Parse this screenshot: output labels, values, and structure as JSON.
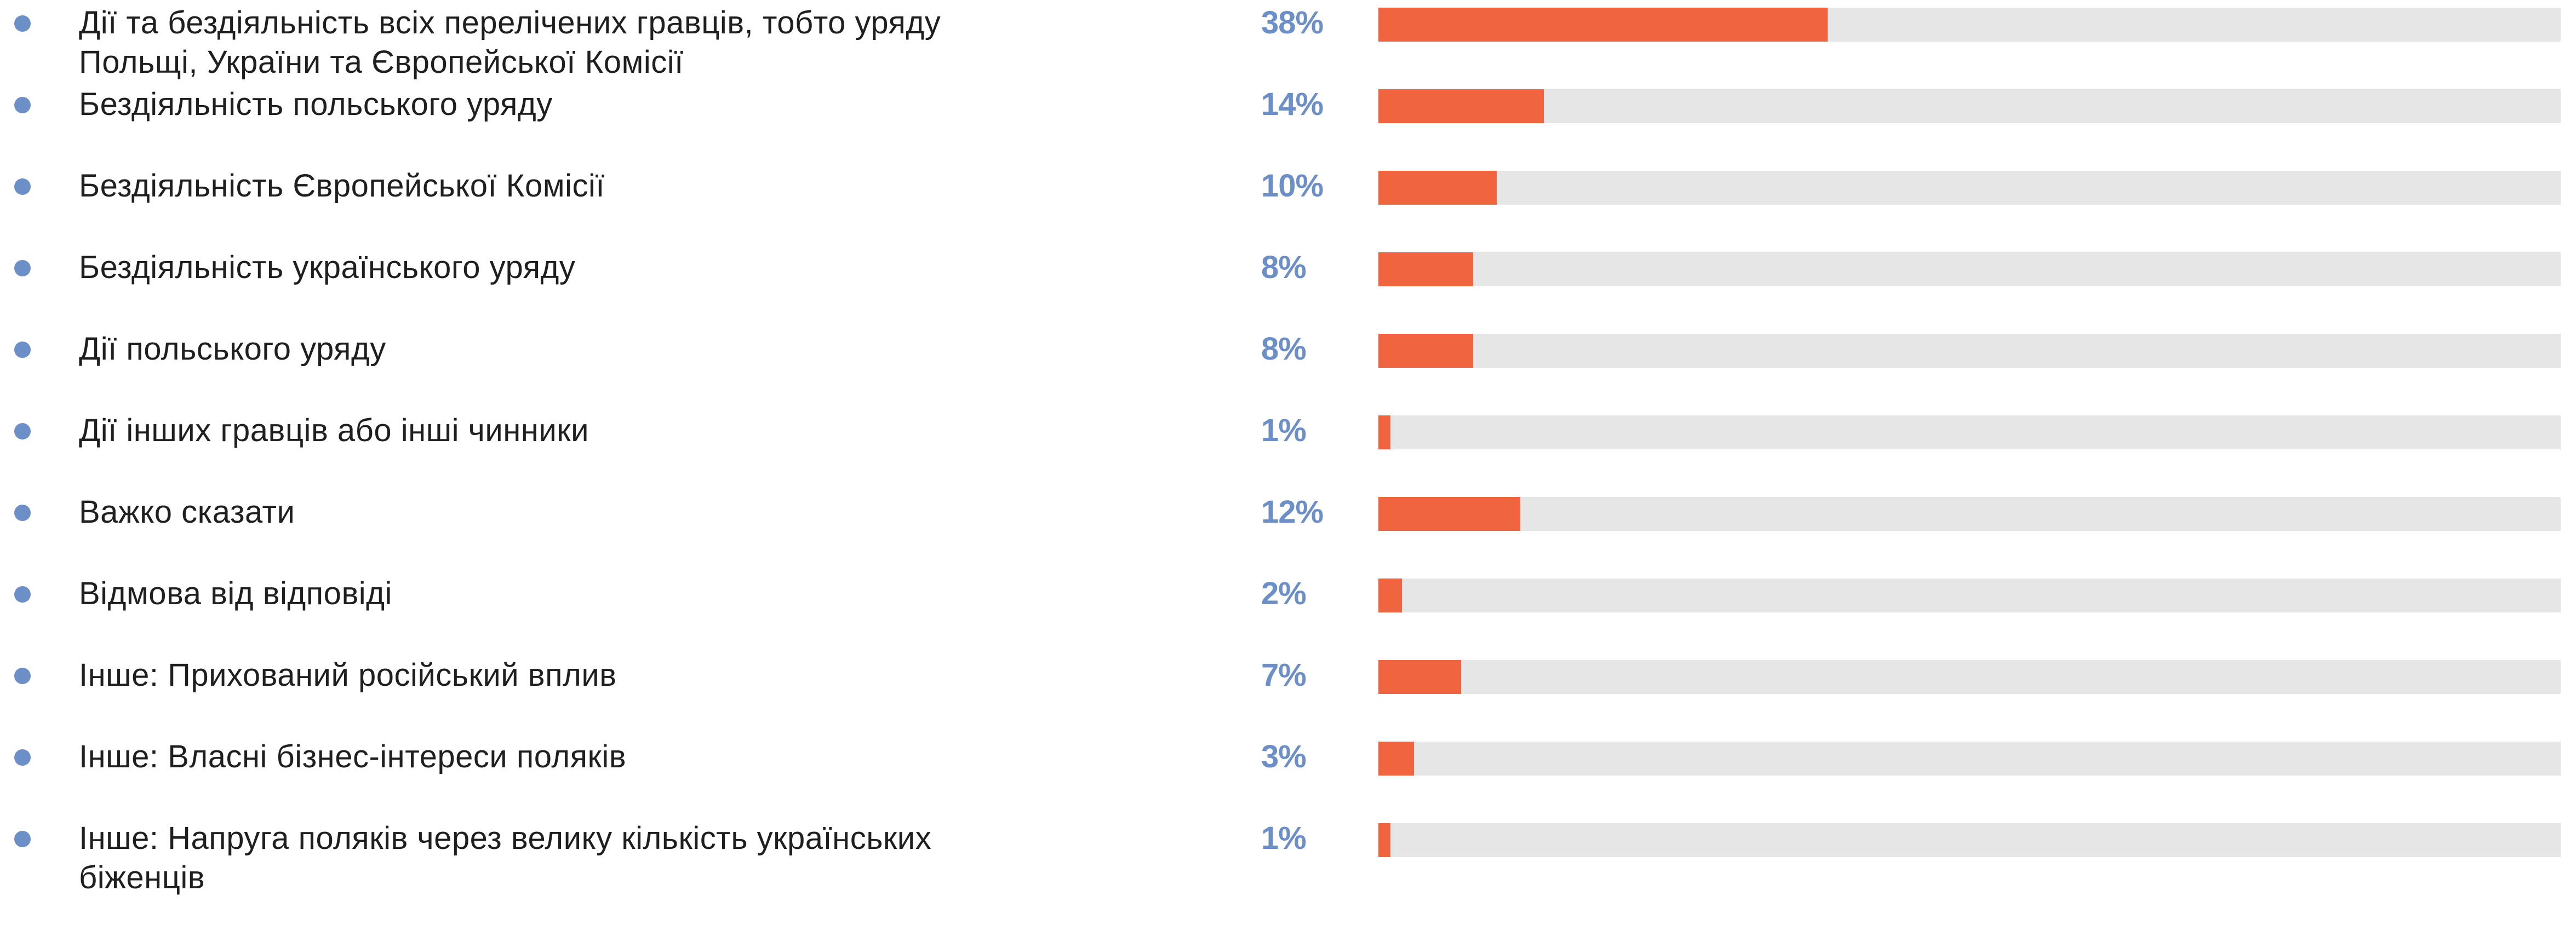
{
  "colors": {
    "bar_fill": "#f0643f",
    "bar_track": "#e6e6e6",
    "value_text": "#6d8fc7",
    "bullet": "#6d8fc7"
  },
  "chart_data": {
    "type": "bar",
    "orientation": "horizontal",
    "xlim": [
      0,
      100
    ],
    "grid": false,
    "legend": "none",
    "categories": [
      "Дії та бездіяльність всіх перелічених гравців, тобто уряду\nПольщі, України та Європейської Комісії",
      "Бездіяльність польського уряду",
      "Бездіяльність Європейської Комісії",
      "Бездіяльність українського уряду",
      "Дії польського уряду",
      "Дії інших гравців або інші чинники",
      "Важко сказати",
      "Відмова від відповіді",
      "Інше: Прихований російський вплив",
      "Інше: Власні бізнес-інтереси поляків",
      "Інше: Напруга поляків через велику кількість українських\nбіженців"
    ],
    "values": [
      38,
      14,
      10,
      8,
      8,
      1,
      12,
      2,
      7,
      3,
      1
    ],
    "value_labels": [
      "38%",
      "14%",
      "10%",
      "8%",
      "8%",
      "1%",
      "12%",
      "2%",
      "7%",
      "3%",
      "1%"
    ]
  }
}
